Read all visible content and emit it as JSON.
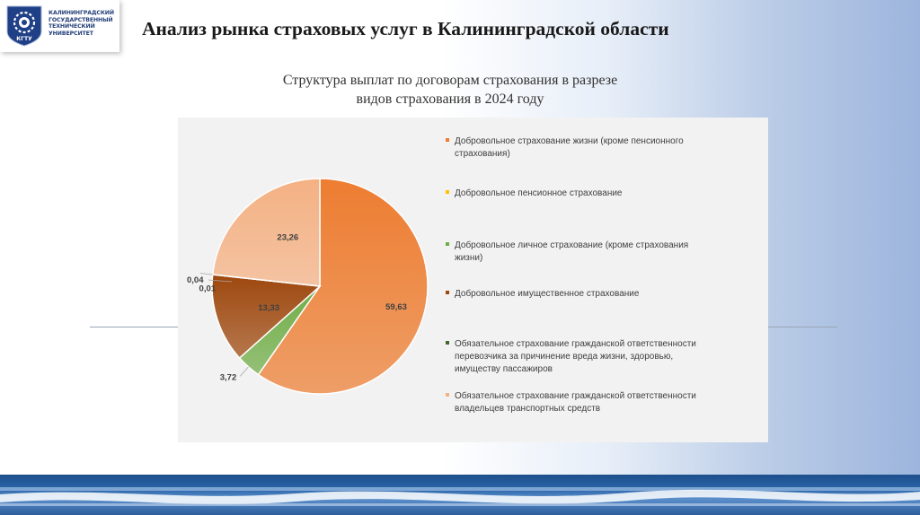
{
  "header": {
    "logo_lines": [
      "КАЛИНИНГРАДСКИЙ",
      "ГОСУДАРСТВЕННЫЙ",
      "ТЕХНИЧЕСКИЙ",
      "УНИВЕРСИТЕТ"
    ],
    "logo_badge": "КГТУ",
    "title": "Анализ рынка страховых услуг в Калининградской области"
  },
  "chart_title": {
    "line1": "Структура выплат по договорам страхования в разрезе",
    "line2": "видов страхования в 2024 году"
  },
  "chart_data": {
    "type": "pie",
    "title": "Структура выплат по договорам страхования в разрезе видов страхования в 2024 году",
    "legend_position": "right",
    "slices": [
      {
        "label": "Добровольное страхование жизни (кроме пенсионного\nстрахования)",
        "value": 59.63,
        "display": "59,63",
        "color": "#ed7d31"
      },
      {
        "label": "Добровольное пенсионное страхование",
        "value": 0,
        "display": "",
        "color": "#ffc000"
      },
      {
        "label": "Добровольное личное страхование (кроме страхования\nжизни)",
        "value": 3.72,
        "display": "3,72",
        "color": "#70ad47"
      },
      {
        "label": "Добровольное имущественное страхование",
        "value": 13.33,
        "display": "13,33",
        "color": "#9e480e"
      },
      {
        "label": "Обязательное страхование гражданской ответственности\nперевозчика за причинение вреда жизни, здоровью,\nимуществу пассажиров",
        "value": 0.01,
        "display": "0,01",
        "color": "#43682b"
      },
      {
        "label": "Обязательное страхование гражданской ответственности\nвладельцев транспортных средств",
        "value": 23.26,
        "display": "23,26",
        "color": "#f4b183"
      }
    ],
    "extra_labels": [
      "0,04"
    ]
  }
}
